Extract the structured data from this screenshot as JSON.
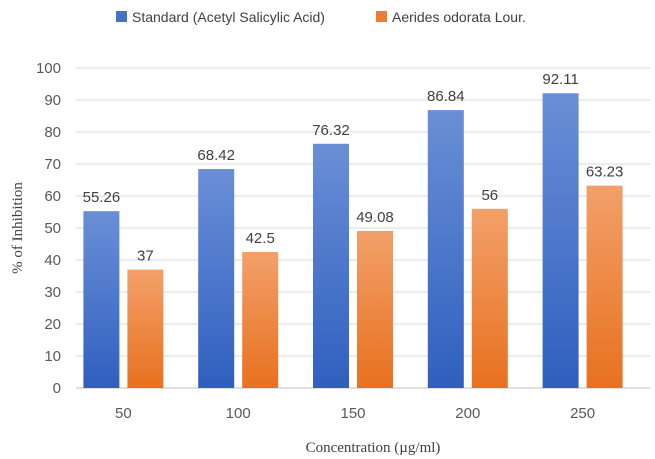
{
  "chart_data": {
    "type": "bar",
    "categories": [
      "50",
      "100",
      "150",
      "200",
      "250"
    ],
    "series": [
      {
        "name": "Standard (Acetyl Salicylic Acid)",
        "values": [
          55.26,
          68.42,
          76.32,
          86.84,
          92.11
        ],
        "labels": [
          "55.26",
          "68.42",
          "76.32",
          "86.84",
          "92.11"
        ],
        "color": "#4472c4"
      },
      {
        "name": "Aerides odorata Lour.",
        "values": [
          37,
          42.5,
          49.08,
          56,
          63.23
        ],
        "labels": [
          "37",
          "42.5",
          "49.08",
          "56",
          "63.23"
        ],
        "color": "#ed7d31"
      }
    ],
    "xlabel": "Concentration (µg/ml)",
    "ylabel": "% of Inhibition",
    "ylim": [
      0,
      100
    ],
    "yticks": [
      0,
      10,
      20,
      30,
      40,
      50,
      60,
      70,
      80,
      90,
      100
    ],
    "grid": true,
    "legend": "top"
  }
}
